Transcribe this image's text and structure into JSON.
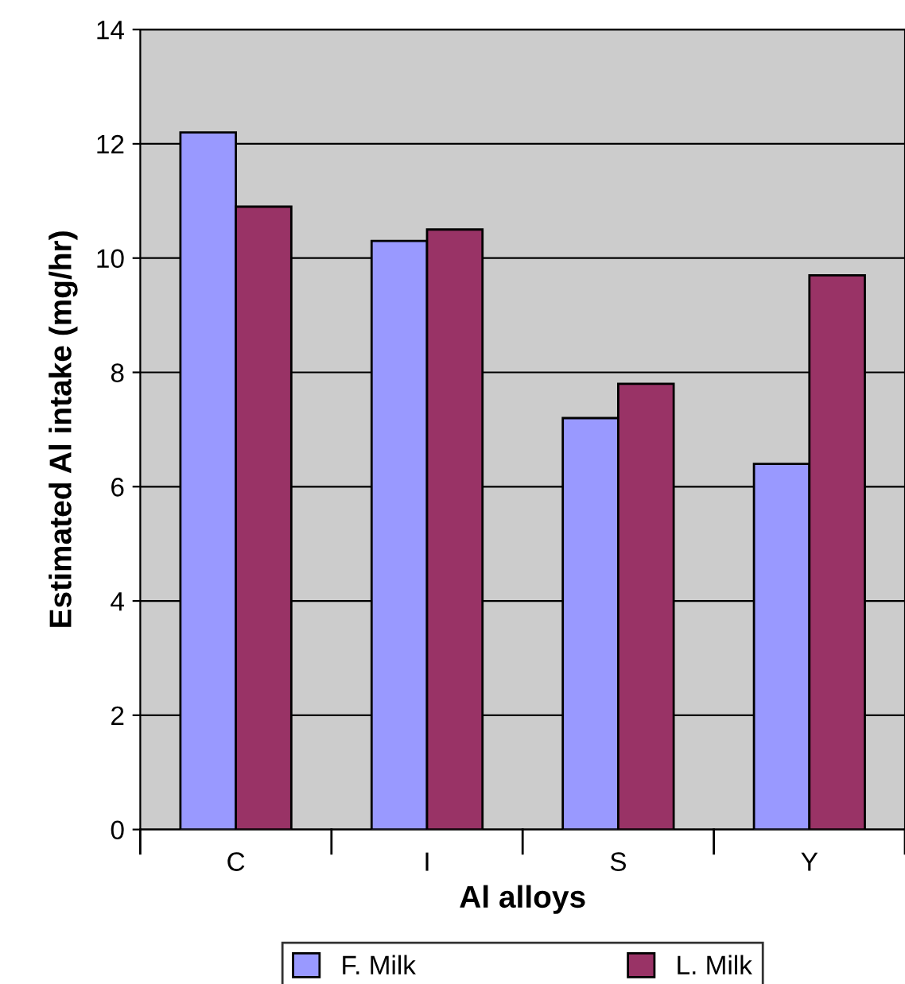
{
  "chart_data": {
    "type": "bar",
    "xlabel": "Al alloys",
    "ylabel": "Estimated Al intake (mg/hr)",
    "categories": [
      "C",
      "I",
      "S",
      "Y"
    ],
    "series": [
      {
        "name": "F. Milk",
        "color": "#9999ff",
        "values": [
          12.2,
          10.3,
          7.2,
          6.4
        ]
      },
      {
        "name": "L. Milk",
        "color": "#993366",
        "values": [
          10.9,
          10.5,
          7.8,
          9.7
        ]
      }
    ],
    "ylim": [
      0,
      14
    ],
    "yticks": [
      0,
      2,
      4,
      6,
      8,
      10,
      12,
      14
    ],
    "grid": "y",
    "legend": "bottom"
  }
}
